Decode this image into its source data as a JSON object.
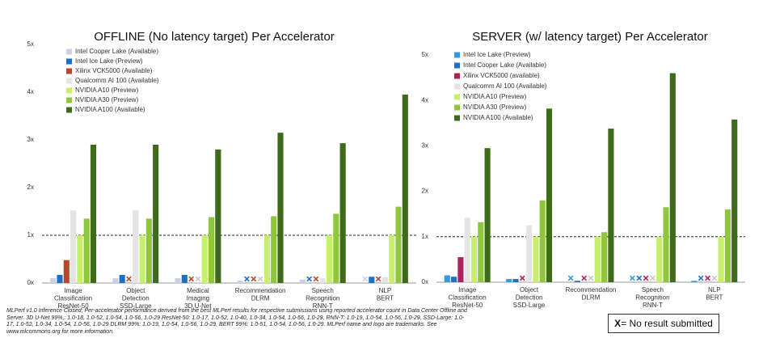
{
  "chart_data": [
    {
      "type": "bar",
      "title": "OFFLINE (No latency target) Per Accelerator",
      "categories": [
        "Image\nClassification\nResNet-50",
        "Object\nDetection\nSSD-Large",
        "Medical\nImaging\n3D U-Net",
        "Recommendation\nDLRM",
        "Speech\nRecognition\nRNN-T",
        "NLP\nBERT"
      ],
      "series": [
        {
          "name": "Intel Cooper Lake (Available)",
          "color": "#c8d0ec",
          "values": [
            0.1,
            0.1,
            0.1,
            0.05,
            0.07,
            null
          ]
        },
        {
          "name": "Intel Ice Lake (Preview)",
          "color": "#1f6fc5",
          "values": [
            0.17,
            0.17,
            0.17,
            null,
            null,
            0.13
          ]
        },
        {
          "name": "Xilinx VCK5000 (Available)",
          "color": "#b5472a",
          "values": [
            0.48,
            null,
            null,
            null,
            null,
            null
          ]
        },
        {
          "name": "Qualcomm AI 100 (Available)",
          "color": "#e4e4e4",
          "values": [
            1.52,
            1.52,
            null,
            null,
            0.1,
            0.12
          ]
        },
        {
          "name": "NVIDIA A10 (Preview)",
          "color": "#c6f06a",
          "values": [
            1.0,
            1.0,
            1.0,
            1.0,
            1.0,
            1.0
          ]
        },
        {
          "name": "NVIDIA A30 (Preview)",
          "color": "#8fc63c",
          "values": [
            1.35,
            1.35,
            1.38,
            1.4,
            1.45,
            1.6
          ]
        },
        {
          "name": "NVIDIA A100 (Available)",
          "color": "#3d6b1a",
          "values": [
            2.9,
            2.9,
            2.8,
            3.15,
            2.93,
            3.95
          ]
        }
      ],
      "ylim": [
        0,
        5
      ],
      "yticks": [
        {
          "value": 0,
          "label": "0x"
        },
        {
          "value": 1,
          "label": "1x"
        },
        {
          "value": 2,
          "label": "2x"
        },
        {
          "value": 3,
          "label": "3x"
        },
        {
          "value": 4,
          "label": "4x"
        },
        {
          "value": 5,
          "label": "5x"
        }
      ],
      "reference_line": 1
    },
    {
      "type": "bar",
      "title": "SERVER (w/ latency target) Per Accelerator",
      "categories": [
        "Image\nClassification\nResNet-50",
        "Object\nDetection\nSSD-Large",
        "Recommendation\nDLRM",
        "Speech\nRecognition\nRNN-T",
        "NLP\nBERT"
      ],
      "series": [
        {
          "name": "Intel Ice Lake (Preview)",
          "color": "#3a9ad9",
          "values": [
            0.15,
            0.07,
            null,
            null,
            0.03
          ]
        },
        {
          "name": "Intel Cooper Lake (Available)",
          "color": "#1f6fc5",
          "values": [
            0.12,
            0.07,
            0.03,
            null,
            null
          ]
        },
        {
          "name": "Xilinx VCK5000 (available)",
          "color": "#b0205a",
          "values": [
            0.55,
            null,
            null,
            null,
            null
          ]
        },
        {
          "name": "Qualcomm AI 100 (Available)",
          "color": "#e4e4e4",
          "values": [
            1.42,
            1.25,
            null,
            null,
            null
          ]
        },
        {
          "name": "NVIDIA A10 (Preview)",
          "color": "#c6f06a",
          "values": [
            1.0,
            1.0,
            1.0,
            1.0,
            1.0
          ]
        },
        {
          "name": "NVIDIA A30 (Preview)",
          "color": "#8fc63c",
          "values": [
            1.32,
            1.8,
            1.1,
            1.65,
            1.6
          ]
        },
        {
          "name": "NVIDIA A100 (Available)",
          "color": "#3d6b1a",
          "values": [
            2.95,
            3.82,
            3.38,
            4.6,
            3.58
          ]
        }
      ],
      "ylim": [
        0,
        5
      ],
      "yticks": [
        {
          "value": 0,
          "label": "0x"
        },
        {
          "value": 1,
          "label": "1x"
        },
        {
          "value": 2,
          "label": "2x"
        },
        {
          "value": 3,
          "label": "3x"
        },
        {
          "value": 4,
          "label": "4x"
        },
        {
          "value": 5,
          "label": "5x"
        }
      ],
      "reference_line": 1
    }
  ],
  "footnote": "MLPerf v1.0 Inference Closed; Per-accelerator performance derived from the best MLPerf results for respective submissions using reported accelerator count in Data Center Offline and Server. 3D U-Net 99%,: 1.0-18, 1.0-52, 1.0-54, 1.0-56, 1.0-29 ResNet-50: 1.0-17, 1.0-52, 1.0-40, 1.0-34, 1.0-54, 1.0-56, 1.0-29, RNN-T: 1.0-19, 1.0-54, 1.0-56, 1.0-29, SSD-Large: 1.0-17, 1.0-52, 1.0-34, 1.0-54, 1.0-56, 1.0-29 DLRM 99%: 1.0-19, 1.0-54, 1.0-56, 1.0-29, BERT 99%: 1.0-51, 1.0-54, 1.0-56, 1.0-29. MLPerf name and logo are trademarks. See www.mlcommons.org for more information.",
  "legend_note": {
    "symbol": "X",
    "text": "= No result submitted"
  }
}
